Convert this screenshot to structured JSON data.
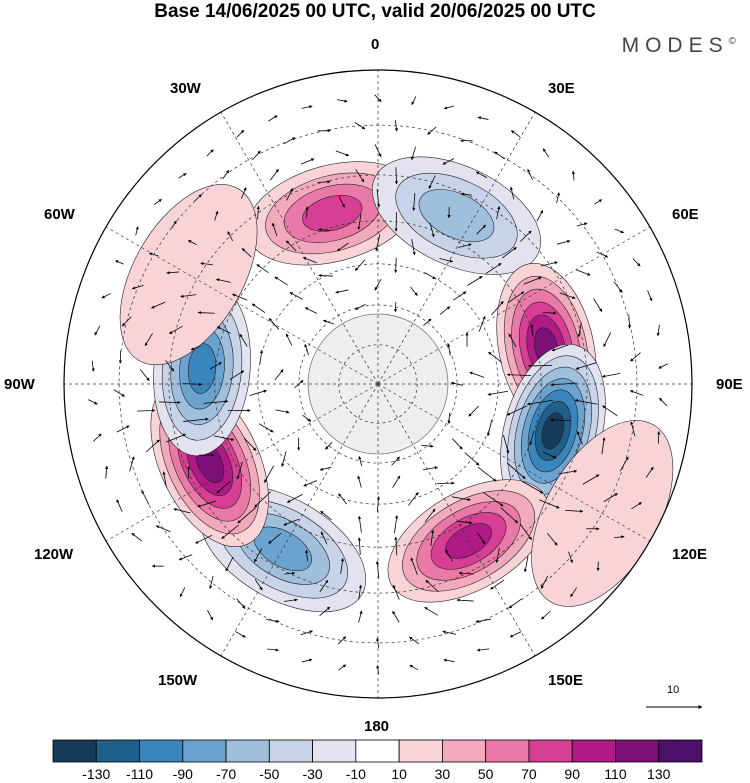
{
  "title": "Base 14/06/2025 00 UTC, valid 20/06/2025 00 UTC",
  "brand": "MODES",
  "brand_mark": "©",
  "longitude_labels": {
    "lon_0": "0",
    "lon_30e": "30E",
    "lon_60e": "60E",
    "lon_90e": "90E",
    "lon_120e": "120E",
    "lon_150e": "150E",
    "lon_180": "180",
    "lon_150w": "150W",
    "lon_120w": "120W",
    "lon_90w": "90W",
    "lon_60w": "60W",
    "lon_30w": "30W"
  },
  "vector_reference": {
    "label": "10",
    "value": 10
  },
  "colorbar": {
    "tick_labels": [
      "-130",
      "-110",
      "-90",
      "-70",
      "-50",
      "-30",
      "-10",
      "10",
      "30",
      "50",
      "70",
      "90",
      "110",
      "130"
    ],
    "colors": [
      "#173c5a",
      "#1f5f8c",
      "#3b85bd",
      "#6aa3cf",
      "#9fbfdd",
      "#c6d3e8",
      "#e3e3f0",
      "#ffffff",
      "#f8d3d8",
      "#f2a9bb",
      "#eb79a7",
      "#d63f94",
      "#b01a87",
      "#7d0f78",
      "#4c0f6a"
    ]
  },
  "chart_data": {
    "type": "heatmap",
    "projection": "south polar stereographic",
    "anomaly_centers": [
      {
        "lon": -15,
        "lat": -47,
        "value": 72
      },
      {
        "lon": 25,
        "lat": -45,
        "value": -58
      },
      {
        "lon": 78,
        "lat": -48,
        "value": 118
      },
      {
        "lon": 105,
        "lat": -46,
        "value": -135
      },
      {
        "lon": 150,
        "lat": -46,
        "value": 102
      },
      {
        "lon": -150,
        "lat": -44,
        "value": -72
      },
      {
        "lon": -115,
        "lat": -45,
        "value": 120
      },
      {
        "lon": -85,
        "lat": -47,
        "value": -95
      },
      {
        "lon": -60,
        "lat": -38,
        "value": 18
      },
      {
        "lon": 120,
        "lat": -30,
        "value": 15
      }
    ]
  }
}
